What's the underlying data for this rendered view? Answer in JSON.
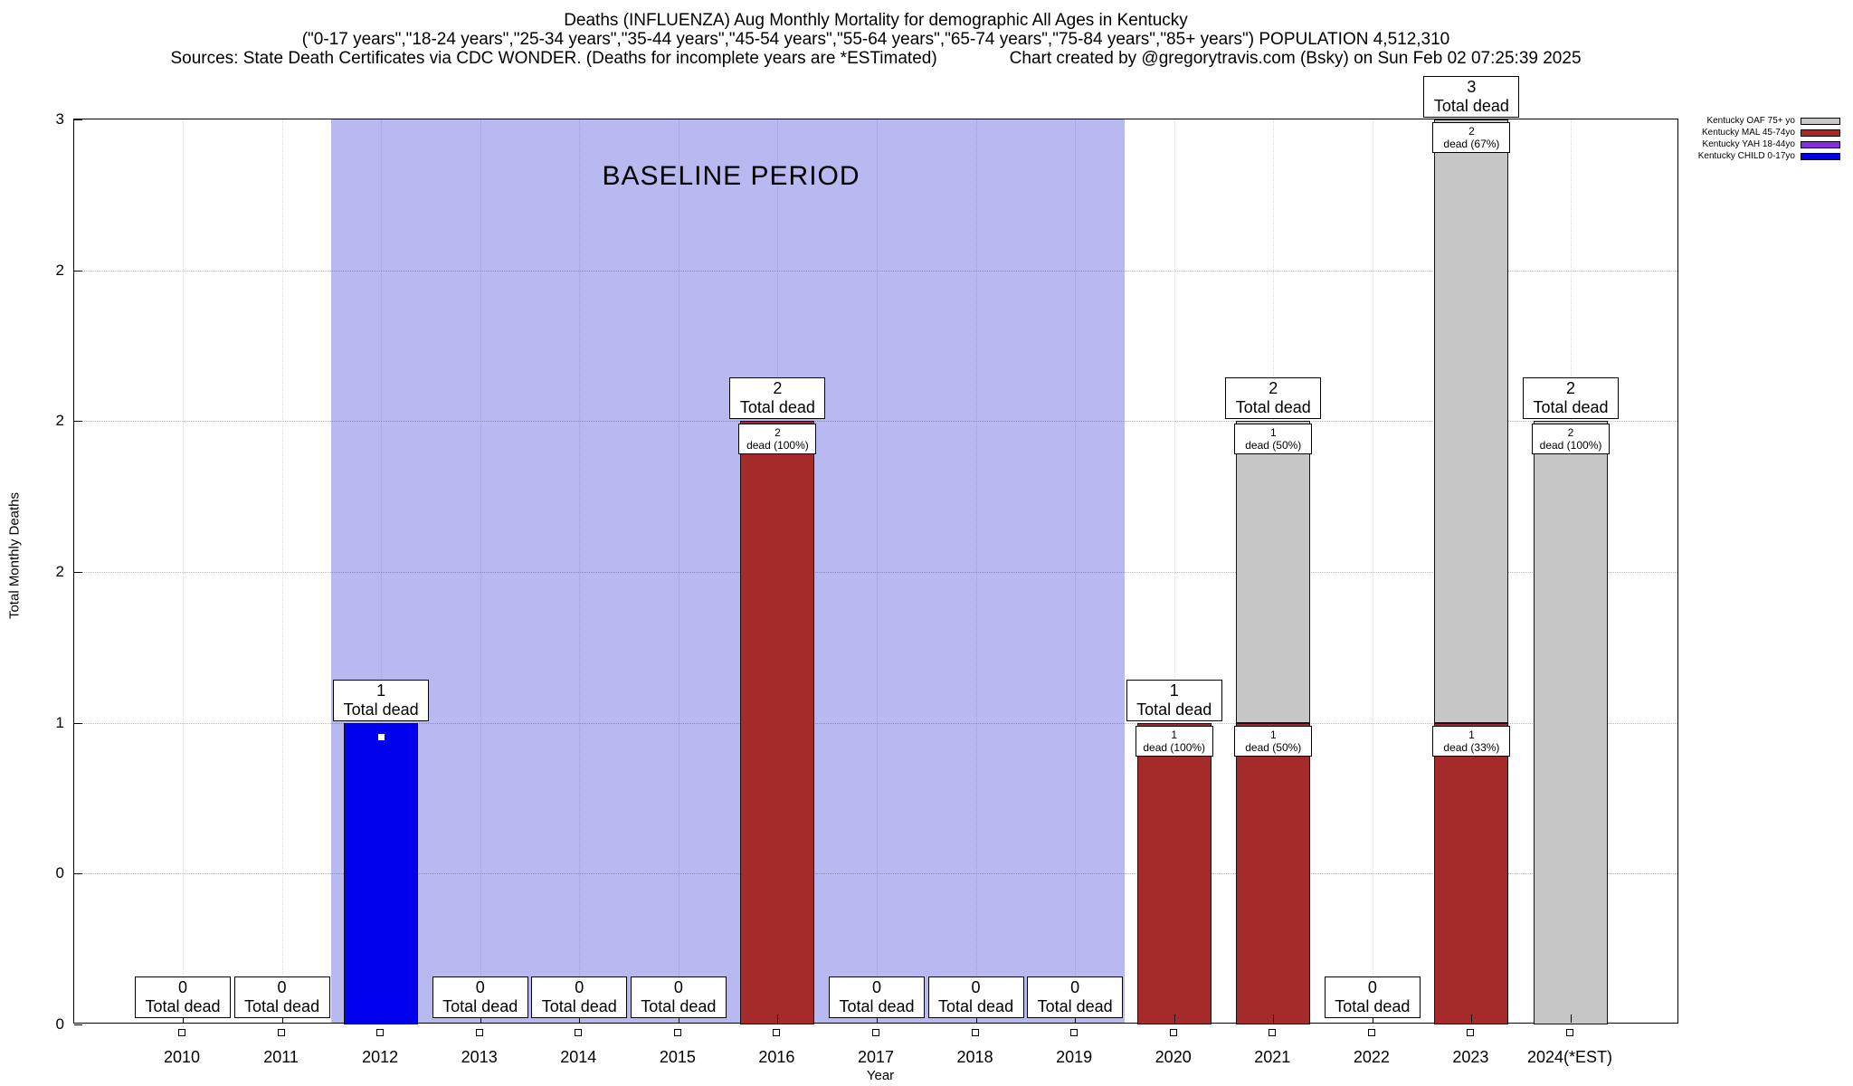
{
  "title": {
    "line1": "Deaths (INFLUENZA) Aug Monthly Mortality for demographic All Ages in Kentucky",
    "line2": "(\"0-17 years\",\"18-24 years\",\"25-34 years\",\"35-44 years\",\"45-54 years\",\"55-64 years\",\"65-74 years\",\"75-84 years\",\"85+ years\") POPULATION 4,512,310",
    "line3_left": "Sources: State Death Certificates via CDC WONDER. (Deaths for incomplete years are *ESTimated)",
    "line3_right": "Chart created by @gregorytravis.com (Bsky) on Sun Feb 02 07:25:39 2025"
  },
  "axes": {
    "ylabel": "Total Monthly Deaths",
    "xlabel": "Year",
    "y_ticks": [
      {
        "value": 0,
        "label": "0"
      },
      {
        "value": 0.5,
        "label": "0"
      },
      {
        "value": 1,
        "label": "1"
      },
      {
        "value": 1.5,
        "label": "2"
      },
      {
        "value": 2,
        "label": "2"
      },
      {
        "value": 2.5,
        "label": "2"
      },
      {
        "value": 3,
        "label": "3"
      }
    ]
  },
  "baseline": {
    "label": "BASELINE PERIOD",
    "start_year": "2012",
    "end_year": "2019",
    "color": "#b9b9f2"
  },
  "legend": {
    "items": [
      {
        "label": "Kentucky OAF 75+ yo",
        "group": "OAF",
        "color": "#c6c6c6"
      },
      {
        "label": "Kentucky MAL 45-74yo",
        "group": "MAL",
        "color": "#a52a2a"
      },
      {
        "label": "Kentucky YAH 18-44yo",
        "group": "YAH",
        "color": "#8a2be2"
      },
      {
        "label": "Kentucky CHILD 0-17yo",
        "group": "CHILD",
        "color": "#0000ee"
      }
    ]
  },
  "chart_data": {
    "type": "bar",
    "stacked": true,
    "title": "Deaths (INFLUENZA) Aug Monthly Mortality for demographic All Ages in Kentucky",
    "xlabel": "Year",
    "ylabel": "Total Monthly Deaths",
    "ylim": [
      0,
      3
    ],
    "grid": true,
    "legend_position": "top-right",
    "total_label_text": "Total dead",
    "categories": [
      "2010",
      "2011",
      "2012",
      "2013",
      "2014",
      "2015",
      "2016",
      "2017",
      "2018",
      "2019",
      "2020",
      "2021",
      "2022",
      "2023",
      "2024(*EST)"
    ],
    "group_colors": {
      "CHILD": "#0000ee",
      "YAH": "#8a2be2",
      "MAL": "#a52a2a",
      "OAF": "#c6c6c6"
    },
    "series": [
      {
        "name": "Kentucky CHILD 0-17yo",
        "group": "CHILD",
        "values": [
          0,
          0,
          1,
          0,
          0,
          0,
          0,
          0,
          0,
          0,
          0,
          0,
          0,
          0,
          0
        ]
      },
      {
        "name": "Kentucky YAH 18-44yo",
        "group": "YAH",
        "values": [
          0,
          0,
          0,
          0,
          0,
          0,
          0,
          0,
          0,
          0,
          0,
          0,
          0,
          0,
          0
        ]
      },
      {
        "name": "Kentucky MAL 45-74yo",
        "group": "MAL",
        "values": [
          0,
          0,
          0,
          0,
          0,
          0,
          2,
          0,
          0,
          0,
          1,
          1,
          0,
          1,
          0
        ]
      },
      {
        "name": "Kentucky OAF 75+ yo",
        "group": "OAF",
        "values": [
          0,
          0,
          0,
          0,
          0,
          0,
          0,
          0,
          0,
          0,
          0,
          1,
          0,
          2,
          2
        ]
      }
    ],
    "years": [
      {
        "year": "2010",
        "total": 0,
        "segments": []
      },
      {
        "year": "2011",
        "total": 0,
        "segments": []
      },
      {
        "year": "2012",
        "total": 1,
        "marker": true,
        "segments": [
          {
            "group": "CHILD",
            "value": 1
          }
        ]
      },
      {
        "year": "2013",
        "total": 0,
        "segments": []
      },
      {
        "year": "2014",
        "total": 0,
        "segments": []
      },
      {
        "year": "2015",
        "total": 0,
        "segments": []
      },
      {
        "year": "2016",
        "total": 2,
        "segments": [
          {
            "group": "MAL",
            "value": 2,
            "label_value": "2",
            "label_pct": "dead (100%)"
          }
        ]
      },
      {
        "year": "2017",
        "total": 0,
        "segments": []
      },
      {
        "year": "2018",
        "total": 0,
        "segments": []
      },
      {
        "year": "2019",
        "total": 0,
        "segments": []
      },
      {
        "year": "2020",
        "total": 1,
        "segments": [
          {
            "group": "MAL",
            "value": 1,
            "label_value": "1",
            "label_pct": "dead (100%)"
          }
        ]
      },
      {
        "year": "2021",
        "total": 2,
        "segments": [
          {
            "group": "MAL",
            "value": 1,
            "label_value": "1",
            "label_pct": "dead (50%)"
          },
          {
            "group": "OAF",
            "value": 1,
            "label_value": "1",
            "label_pct": "dead (50%)"
          }
        ]
      },
      {
        "year": "2022",
        "total": 0,
        "segments": []
      },
      {
        "year": "2023",
        "total": 3,
        "segments": [
          {
            "group": "MAL",
            "value": 1,
            "label_value": "1",
            "label_pct": "dead (33%)"
          },
          {
            "group": "OAF",
            "value": 2,
            "label_value": "2",
            "label_pct": "dead (67%)"
          }
        ]
      },
      {
        "year": "2024(*EST)",
        "total": 2,
        "segments": [
          {
            "group": "OAF",
            "value": 2,
            "label_value": "2",
            "label_pct": "dead (100%)"
          }
        ]
      }
    ]
  }
}
